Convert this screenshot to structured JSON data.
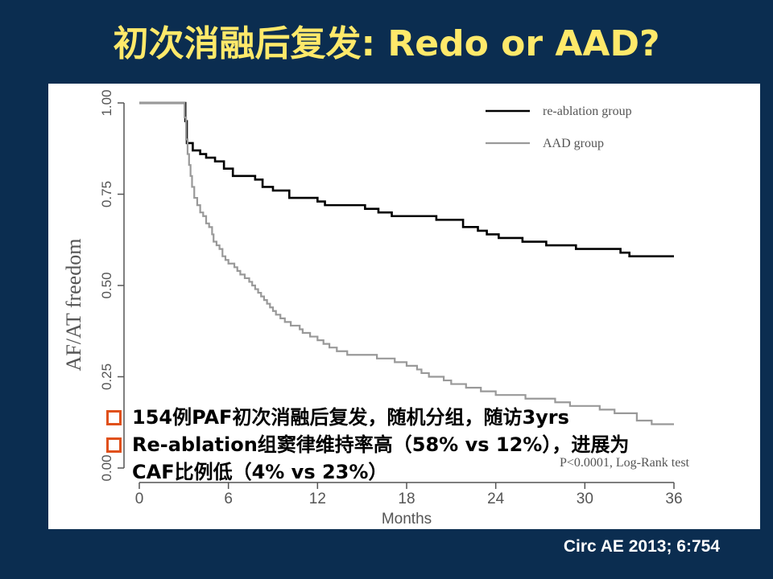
{
  "slide": {
    "title": "初次消融后复发: Redo or AAD?",
    "citation": "Circ AE 2013; 6:754"
  },
  "bullets": [
    {
      "text": "154例PAF初次消融后复发，随机分组，随访3yrs"
    },
    {
      "text": "Re-ablation组窦律维持率高（58% vs 12%），进展为",
      "continuation": "CAF比例低（4% vs 23%）"
    }
  ],
  "colors": {
    "background": "#0b2d50",
    "title": "#ffe96a",
    "bullet_marker": "#e0501a",
    "reablation_line": "#000000",
    "aad_line": "#999999"
  },
  "chart_data": {
    "type": "line",
    "step": true,
    "xlabel": "Months",
    "ylabel": "AF/AT freedom",
    "xlim": [
      0,
      36
    ],
    "ylim": [
      0,
      1
    ],
    "x_ticks": [
      "0",
      "6",
      "12",
      "18",
      "24",
      "30",
      "36"
    ],
    "y_ticks": [
      "0.00",
      "0.25",
      "0.50",
      "0.75",
      "1.00"
    ],
    "legend_position": "top-right",
    "annotation": "P<0.0001, Log-Rank test",
    "series": [
      {
        "name": "re-ablation group",
        "color": "#000000",
        "points": [
          [
            0,
            1.0
          ],
          [
            3,
            1.0
          ],
          [
            3.1,
            0.95
          ],
          [
            3.2,
            0.89
          ],
          [
            3.6,
            0.87
          ],
          [
            4.1,
            0.86
          ],
          [
            4.5,
            0.85
          ],
          [
            5.1,
            0.84
          ],
          [
            5.7,
            0.82
          ],
          [
            6.3,
            0.8
          ],
          [
            7.8,
            0.79
          ],
          [
            8.3,
            0.77
          ],
          [
            9.0,
            0.76
          ],
          [
            10.1,
            0.74
          ],
          [
            12.0,
            0.73
          ],
          [
            12.5,
            0.72
          ],
          [
            15.2,
            0.71
          ],
          [
            16.1,
            0.7
          ],
          [
            17.0,
            0.69
          ],
          [
            20.0,
            0.68
          ],
          [
            21.8,
            0.66
          ],
          [
            22.8,
            0.65
          ],
          [
            23.4,
            0.64
          ],
          [
            24.2,
            0.63
          ],
          [
            25.8,
            0.62
          ],
          [
            27.4,
            0.61
          ],
          [
            29.4,
            0.6
          ],
          [
            32.4,
            0.59
          ],
          [
            33.0,
            0.58
          ],
          [
            36.0,
            0.58
          ]
        ]
      },
      {
        "name": "AAD group",
        "color": "#999999",
        "points": [
          [
            0,
            1.0
          ],
          [
            3,
            1.0
          ],
          [
            3.05,
            0.96
          ],
          [
            3.15,
            0.9
          ],
          [
            3.25,
            0.86
          ],
          [
            3.35,
            0.83
          ],
          [
            3.45,
            0.8
          ],
          [
            3.55,
            0.77
          ],
          [
            3.7,
            0.74
          ],
          [
            3.9,
            0.72
          ],
          [
            4.1,
            0.7
          ],
          [
            4.3,
            0.69
          ],
          [
            4.5,
            0.67
          ],
          [
            4.7,
            0.66
          ],
          [
            4.9,
            0.64
          ],
          [
            5.0,
            0.62
          ],
          [
            5.2,
            0.61
          ],
          [
            5.4,
            0.6
          ],
          [
            5.6,
            0.58
          ],
          [
            5.8,
            0.57
          ],
          [
            6.0,
            0.56
          ],
          [
            6.4,
            0.55
          ],
          [
            6.6,
            0.54
          ],
          [
            6.8,
            0.53
          ],
          [
            7.1,
            0.52
          ],
          [
            7.4,
            0.51
          ],
          [
            7.6,
            0.5
          ],
          [
            7.8,
            0.49
          ],
          [
            8.0,
            0.48
          ],
          [
            8.2,
            0.47
          ],
          [
            8.4,
            0.46
          ],
          [
            8.6,
            0.45
          ],
          [
            8.8,
            0.44
          ],
          [
            9.0,
            0.43
          ],
          [
            9.2,
            0.42
          ],
          [
            9.5,
            0.41
          ],
          [
            9.8,
            0.4
          ],
          [
            10.2,
            0.39
          ],
          [
            10.8,
            0.38
          ],
          [
            11.0,
            0.37
          ],
          [
            11.5,
            0.36
          ],
          [
            12.0,
            0.35
          ],
          [
            12.4,
            0.34
          ],
          [
            12.8,
            0.33
          ],
          [
            13.3,
            0.32
          ],
          [
            14.0,
            0.31
          ],
          [
            16.0,
            0.3
          ],
          [
            17.2,
            0.29
          ],
          [
            18.0,
            0.28
          ],
          [
            18.7,
            0.27
          ],
          [
            19.0,
            0.26
          ],
          [
            19.5,
            0.25
          ],
          [
            20.5,
            0.24
          ],
          [
            21.0,
            0.23
          ],
          [
            22.0,
            0.22
          ],
          [
            23.0,
            0.21
          ],
          [
            24.0,
            0.2
          ],
          [
            26.0,
            0.19
          ],
          [
            28.0,
            0.18
          ],
          [
            29.0,
            0.17
          ],
          [
            31.0,
            0.16
          ],
          [
            32.0,
            0.15
          ],
          [
            33.5,
            0.13
          ],
          [
            34.5,
            0.12
          ],
          [
            36.0,
            0.12
          ]
        ]
      }
    ]
  }
}
